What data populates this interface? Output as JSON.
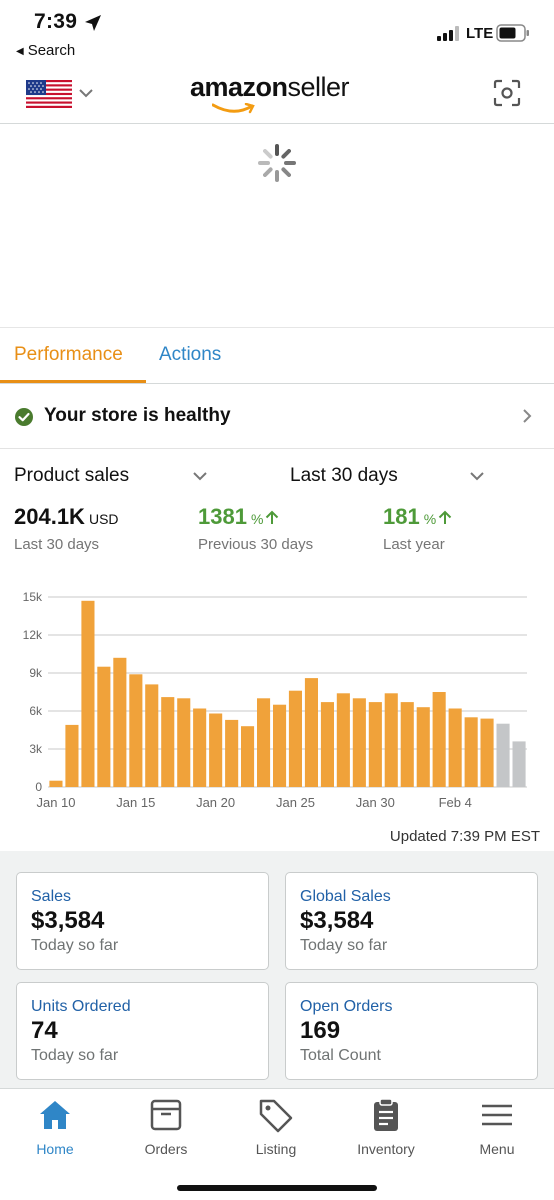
{
  "status_bar": {
    "time": "7:39",
    "back_label": "Search",
    "network": "LTE"
  },
  "header": {
    "brand_primary": "amazon",
    "brand_secondary": "seller"
  },
  "tabs": [
    {
      "label": "Performance",
      "active": true
    },
    {
      "label": "Actions",
      "active": false
    }
  ],
  "health": {
    "text": "Your store is healthy"
  },
  "selectors": {
    "metric": "Product sales",
    "range": "Last 30 days"
  },
  "stats": [
    {
      "value": "204.1K",
      "unit": "USD",
      "label": "Last 30 days"
    },
    {
      "value": "1381",
      "unit": "%",
      "label": "Previous 30 days"
    },
    {
      "value": "181",
      "unit": "%",
      "label": "Last year"
    }
  ],
  "chart_data": {
    "type": "bar",
    "x": [
      "Jan 10",
      "Jan 11",
      "Jan 12",
      "Jan 13",
      "Jan 14",
      "Jan 15",
      "Jan 16",
      "Jan 17",
      "Jan 18",
      "Jan 19",
      "Jan 20",
      "Jan 21",
      "Jan 22",
      "Jan 23",
      "Jan 24",
      "Jan 25",
      "Jan 26",
      "Jan 27",
      "Jan 28",
      "Jan 29",
      "Jan 30",
      "Jan 31",
      "Feb 1",
      "Feb 2",
      "Feb 3",
      "Feb 4",
      "Feb 5",
      "Feb 6",
      "Feb 7",
      "Feb 8"
    ],
    "values": [
      500,
      4900,
      14700,
      9500,
      10200,
      8900,
      8100,
      7100,
      7000,
      6200,
      5800,
      5300,
      4800,
      7000,
      6500,
      7600,
      8600,
      6700,
      7400,
      7000,
      6700,
      7400,
      6700,
      6300,
      7500,
      6200,
      5500,
      5400,
      5000,
      3600
    ],
    "bar_colors": [
      "#f0a23a",
      "#f0a23a",
      "#f0a23a",
      "#f0a23a",
      "#f0a23a",
      "#f0a23a",
      "#f0a23a",
      "#f0a23a",
      "#f0a23a",
      "#f0a23a",
      "#f0a23a",
      "#f0a23a",
      "#f0a23a",
      "#f0a23a",
      "#f0a23a",
      "#f0a23a",
      "#f0a23a",
      "#f0a23a",
      "#f0a23a",
      "#f0a23a",
      "#f0a23a",
      "#f0a23a",
      "#f0a23a",
      "#f0a23a",
      "#f0a23a",
      "#f0a23a",
      "#f0a23a",
      "#f0a23a",
      "#c4c6c8",
      "#c4c6c8"
    ],
    "y_ticks": [
      "0",
      "3k",
      "6k",
      "9k",
      "12k",
      "15k"
    ],
    "y_tick_values": [
      0,
      3000,
      6000,
      9000,
      12000,
      15000
    ],
    "x_ticks": [
      "Jan 10",
      "Jan 15",
      "Jan 20",
      "Jan 25",
      "Jan 30",
      "Feb 4"
    ],
    "ylim": [
      0,
      15000
    ],
    "grid": true,
    "title": "",
    "xlabel": "",
    "ylabel": ""
  },
  "updated": "Updated 7:39 PM EST",
  "cards": [
    {
      "title": "Sales",
      "value": "$3,584",
      "sub": "Today so far"
    },
    {
      "title": "Global Sales",
      "value": "$3,584",
      "sub": "Today so far"
    },
    {
      "title": "Units Ordered",
      "value": "74",
      "sub": "Today so far"
    },
    {
      "title": "Open Orders",
      "value": "169",
      "sub": "Total Count"
    }
  ],
  "nav": [
    {
      "label": "Home",
      "icon": "home-icon",
      "active": true
    },
    {
      "label": "Orders",
      "icon": "orders-icon",
      "active": false
    },
    {
      "label": "Listing",
      "icon": "tag-icon",
      "active": false
    },
    {
      "label": "Inventory",
      "icon": "clipboard-icon",
      "active": false
    },
    {
      "label": "Menu",
      "icon": "hamburger-icon",
      "active": false
    }
  ],
  "colors": {
    "accent_orange": "#e88f16",
    "link_blue": "#2f86c7",
    "positive_green": "#4e9a39",
    "bar_orange": "#f0a23a",
    "bar_pending": "#c4c6c8"
  }
}
